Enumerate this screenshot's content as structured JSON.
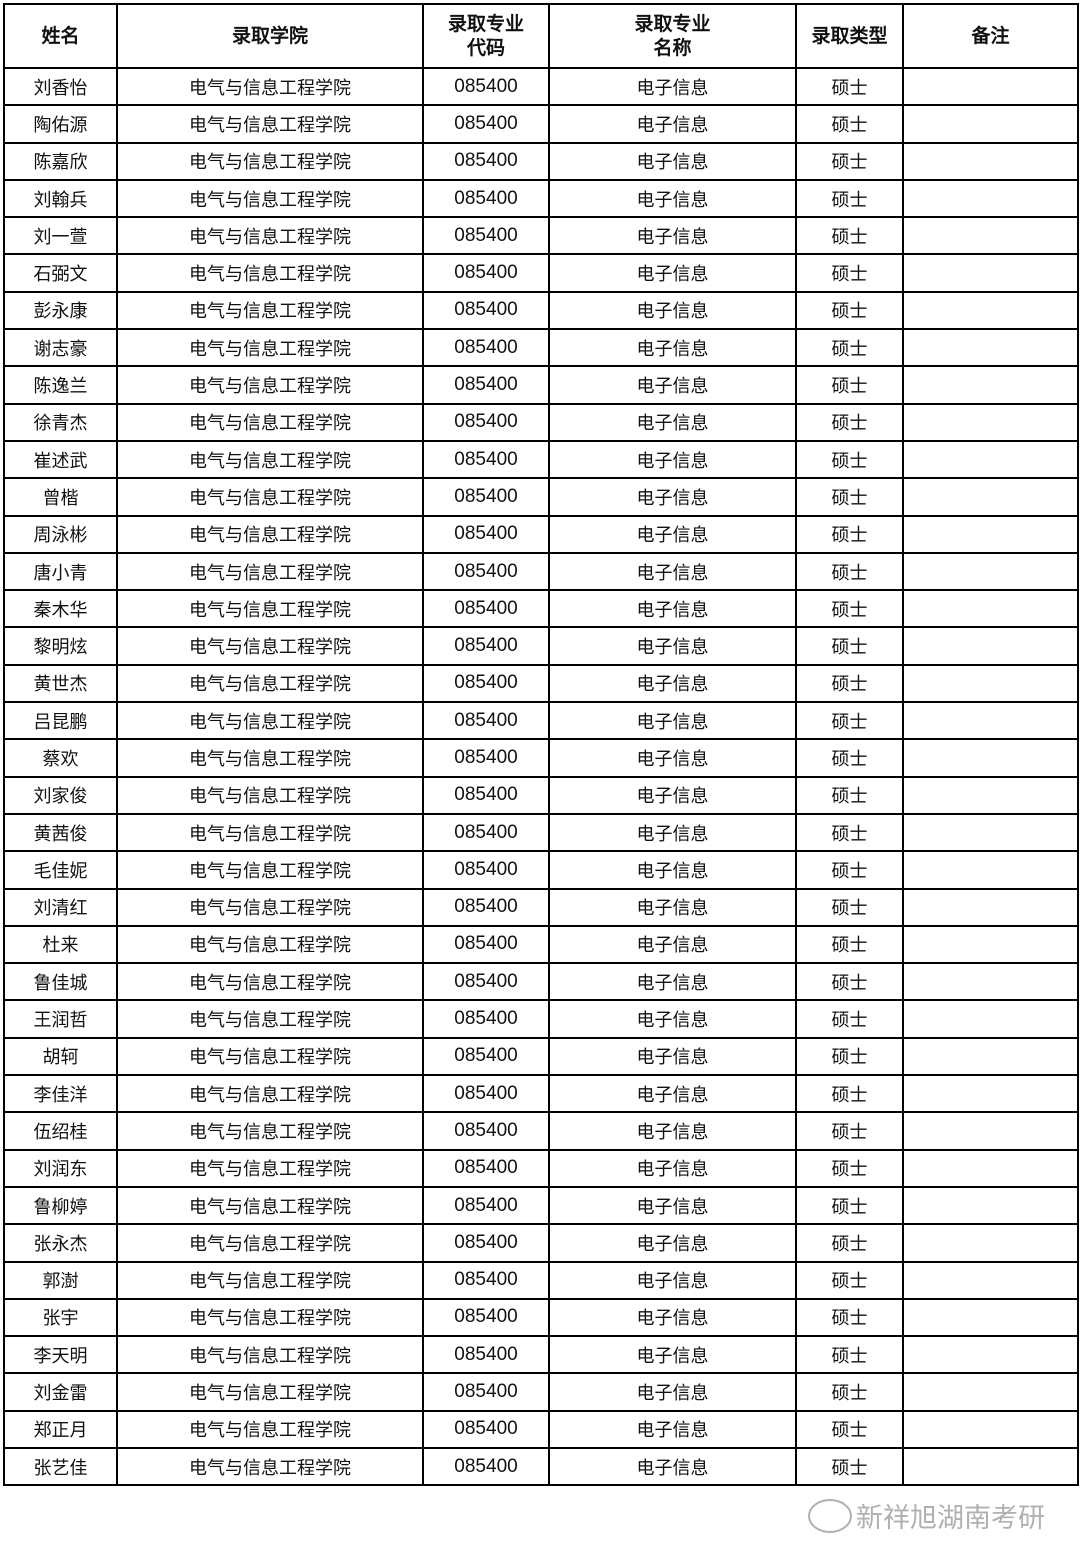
{
  "headers": [
    "姓名",
    "录取学院",
    "录取专业代码",
    "录取专业名称",
    "录取类型",
    "备注"
  ],
  "college": "电气与信息工程学院",
  "code": "085400",
  "major": "电子信息",
  "type": "硕士",
  "names": [
    "刘香怡",
    "陶佑源",
    "陈嘉欣",
    "刘翰兵",
    "刘一萱",
    "石弼文",
    "彭永康",
    "谢志豪",
    "陈逸兰",
    "徐青杰",
    "崔述武",
    "曾楷",
    "周泳彬",
    "唐小青",
    "秦木华",
    "黎明炫",
    "黄世杰",
    "吕昆鹏",
    "蔡欢",
    "刘家俊",
    "黄茜俊",
    "毛佳妮",
    "刘清红",
    "杜来",
    "鲁佳城",
    "王润哲",
    "胡轲",
    "李佳洋",
    "伍绍桂",
    "刘润东",
    "鲁柳婷",
    "张永杰",
    "郭澍",
    "张宇",
    "李天明",
    "刘金雷",
    "郑正月",
    "张艺佳"
  ],
  "watermark": "新祥旭湖南考研"
}
